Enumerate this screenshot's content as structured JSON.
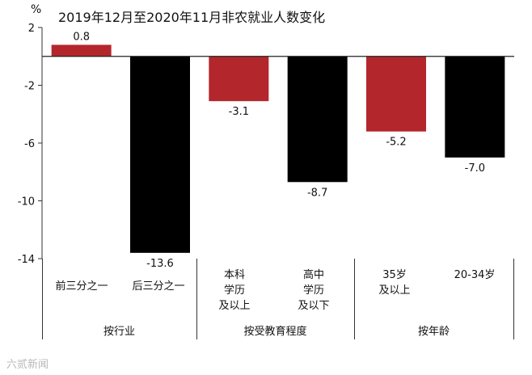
{
  "unit": "%",
  "watermark": "六贰新闻",
  "chart_data": {
    "type": "bar",
    "title": "2019年12月至2020年11月非农就业人数变化",
    "ylim": [
      -14,
      2
    ],
    "yticks": [
      2,
      -2,
      -6,
      -10,
      -14
    ],
    "colors": {
      "red": "#b3272c",
      "black": "#000000"
    },
    "bars": [
      {
        "label": "前三分之一",
        "value": 0.8,
        "display": "0.8",
        "color": "red"
      },
      {
        "label": "后三分之一",
        "value": -13.6,
        "display": "-13.6",
        "color": "black"
      },
      {
        "label": "本科\n学历\n及以上",
        "value": -3.1,
        "display": "-3.1",
        "color": "red"
      },
      {
        "label": "高中\n学历\n及以下",
        "value": -8.7,
        "display": "-8.7",
        "color": "black"
      },
      {
        "label": "35岁\n及以上",
        "value": -5.2,
        "display": "-5.2",
        "color": "red"
      },
      {
        "label": "20-34岁",
        "value": -7.0,
        "display": "-7.0",
        "color": "black"
      }
    ],
    "groups": [
      "按行业",
      "按受教育程度",
      "按年龄"
    ]
  }
}
